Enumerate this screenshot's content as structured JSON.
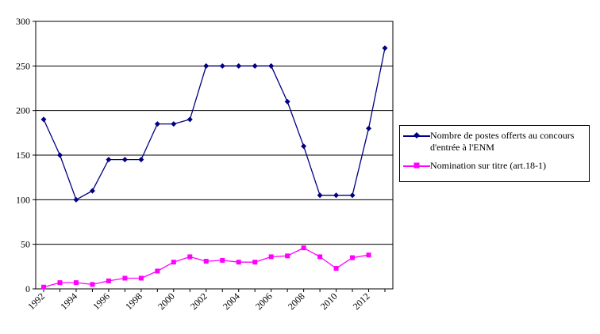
{
  "chart_data": {
    "type": "line",
    "x": [
      1992,
      1993,
      1994,
      1995,
      1996,
      1997,
      1998,
      1999,
      2000,
      2001,
      2002,
      2003,
      2004,
      2005,
      2006,
      2007,
      2008,
      2009,
      2010,
      2011,
      2012,
      2013
    ],
    "x_tick_labels": [
      "1992",
      "1994",
      "1996",
      "1998",
      "2000",
      "2002",
      "2004",
      "2006",
      "2008",
      "2010",
      "2012"
    ],
    "y_tick_labels": [
      "0",
      "50",
      "100",
      "150",
      "200",
      "250",
      "300"
    ],
    "ylim": [
      0,
      300
    ],
    "xlim": [
      1992,
      2013
    ],
    "grid": "horizontal",
    "legend_position": "right",
    "series": [
      {
        "name": "Nombre de postes offerts au concours d'entrée à l'ENM",
        "color": "#000080",
        "marker": "diamond",
        "values": [
          190,
          150,
          100,
          110,
          145,
          145,
          145,
          185,
          185,
          190,
          250,
          250,
          250,
          250,
          250,
          210,
          160,
          105,
          105,
          105,
          180,
          270
        ]
      },
      {
        "name": "Nomination sur titre (art.18-1)",
        "color": "#ff00ff",
        "marker": "square",
        "values": [
          2,
          7,
          7,
          5,
          9,
          12,
          12,
          20,
          30,
          36,
          31,
          32,
          30,
          30,
          36,
          37,
          46,
          36,
          23,
          35,
          38,
          null
        ]
      }
    ]
  }
}
